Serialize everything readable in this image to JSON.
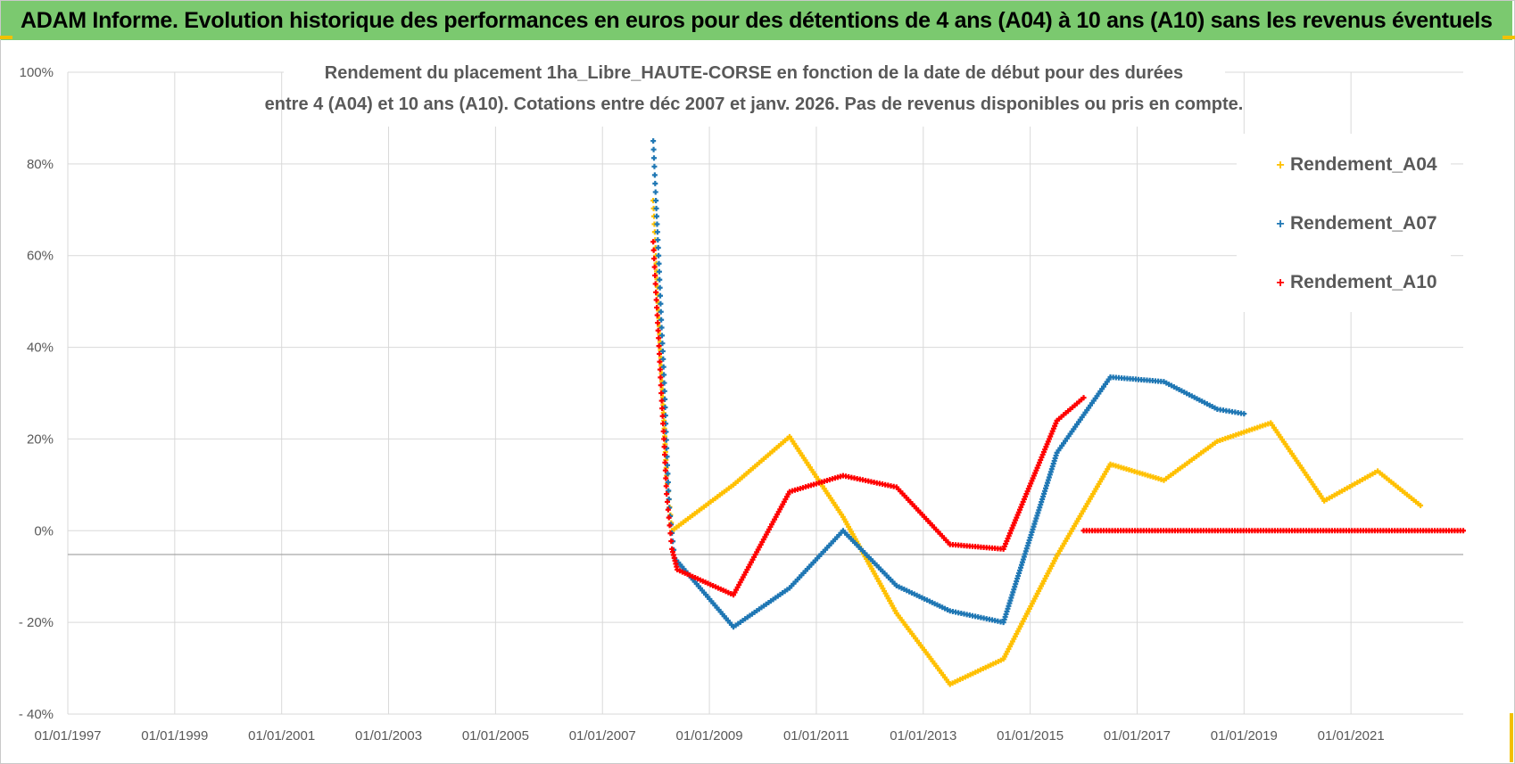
{
  "banner": {
    "title": "ADAM Informe. Evolution historique des performances en euros pour des détentions de 4 ans (A04) à 10 ans (A10) sans les revenus éventuels",
    "color": "#7bc96f"
  },
  "chart_data": {
    "type": "scatter",
    "title_lines": [
      "Rendement du placement 1ha_Libre_HAUTE-CORSE en fonction de la date de début pour des durées",
      "entre 4 (A04) et 10 ans (A10).  Cotations entre déc 2007 et janv. 2026.  Pas de revenus disponibles ou pris en compte."
    ],
    "xlabel": "",
    "ylabel": "",
    "xlim": [
      1997.0,
      2023.1
    ],
    "ylim": [
      -40,
      100
    ],
    "yticks": [
      100,
      80,
      60,
      40,
      20,
      0,
      -20,
      -40
    ],
    "ytick_labels": [
      "100%",
      "80%",
      "60%",
      "40%",
      "20%",
      "0%",
      "- 20%",
      "- 40%"
    ],
    "xticks": [
      1997,
      1999,
      2001,
      2003,
      2005,
      2007,
      2009,
      2011,
      2013,
      2015,
      2017,
      2019,
      2021
    ],
    "xtick_labels": [
      "01/01/1997",
      "01/01/1999",
      "01/01/2001",
      "01/01/2003",
      "01/01/2005",
      "01/01/2007",
      "01/01/2009",
      "01/01/2011",
      "01/01/2013",
      "01/01/2015",
      "01/01/2017",
      "01/01/2019",
      "01/01/2021"
    ],
    "grid": true,
    "legend_position": "top-right",
    "series": [
      {
        "name": "Rendement_A04",
        "color": "#ffc000",
        "points": [
          [
            2007.95,
            72
          ],
          [
            2008.0,
            60
          ],
          [
            2008.05,
            48
          ],
          [
            2008.1,
            36
          ],
          [
            2008.15,
            24
          ],
          [
            2008.2,
            12
          ],
          [
            2008.3,
            0
          ],
          [
            2009.45,
            10
          ],
          [
            2010.5,
            20.5
          ],
          [
            2011.5,
            3
          ],
          [
            2012.5,
            -18
          ],
          [
            2013.5,
            -33.5
          ],
          [
            2014.5,
            -28
          ],
          [
            2015.5,
            -5.5
          ],
          [
            2016.5,
            14.5
          ],
          [
            2017.5,
            11
          ],
          [
            2018.5,
            19.5
          ],
          [
            2019.5,
            23.5
          ],
          [
            2020.5,
            6.5
          ],
          [
            2021.5,
            13
          ],
          [
            2022.3,
            5.5
          ]
        ]
      },
      {
        "name": "Rendement_A07",
        "color": "#1f77b4",
        "points": [
          [
            2007.95,
            85
          ],
          [
            2008.0,
            72
          ],
          [
            2008.05,
            60
          ],
          [
            2008.1,
            46
          ],
          [
            2008.15,
            34
          ],
          [
            2008.2,
            18
          ],
          [
            2008.25,
            5
          ],
          [
            2008.35,
            -6
          ],
          [
            2009.45,
            -21
          ],
          [
            2010.5,
            -12.5
          ],
          [
            2011.5,
            0
          ],
          [
            2012.5,
            -12
          ],
          [
            2013.5,
            -17.5
          ],
          [
            2014.5,
            -20
          ],
          [
            2015.5,
            17
          ],
          [
            2016.5,
            33.5
          ],
          [
            2017.5,
            32.5
          ],
          [
            2018.5,
            26.5
          ],
          [
            2019.0,
            25.5
          ]
        ]
      },
      {
        "name": "Rendement_A10",
        "color": "#ff0000",
        "points": [
          [
            2007.95,
            63
          ],
          [
            2008.0,
            52
          ],
          [
            2008.05,
            42
          ],
          [
            2008.1,
            30
          ],
          [
            2008.15,
            20
          ],
          [
            2008.2,
            8
          ],
          [
            2008.3,
            -4
          ],
          [
            2008.4,
            -8.5
          ],
          [
            2009.45,
            -14
          ],
          [
            2010.5,
            8.5
          ],
          [
            2011.5,
            12
          ],
          [
            2012.5,
            9.5
          ],
          [
            2013.5,
            -3
          ],
          [
            2014.5,
            -4
          ],
          [
            2015.5,
            24
          ],
          [
            2016.0,
            29
          ]
        ]
      },
      {
        "name": "Rendement_A10",
        "color": "#ff0000",
        "points": [
          [
            2016.0,
            0
          ],
          [
            2023.1,
            0
          ]
        ]
      }
    ]
  }
}
